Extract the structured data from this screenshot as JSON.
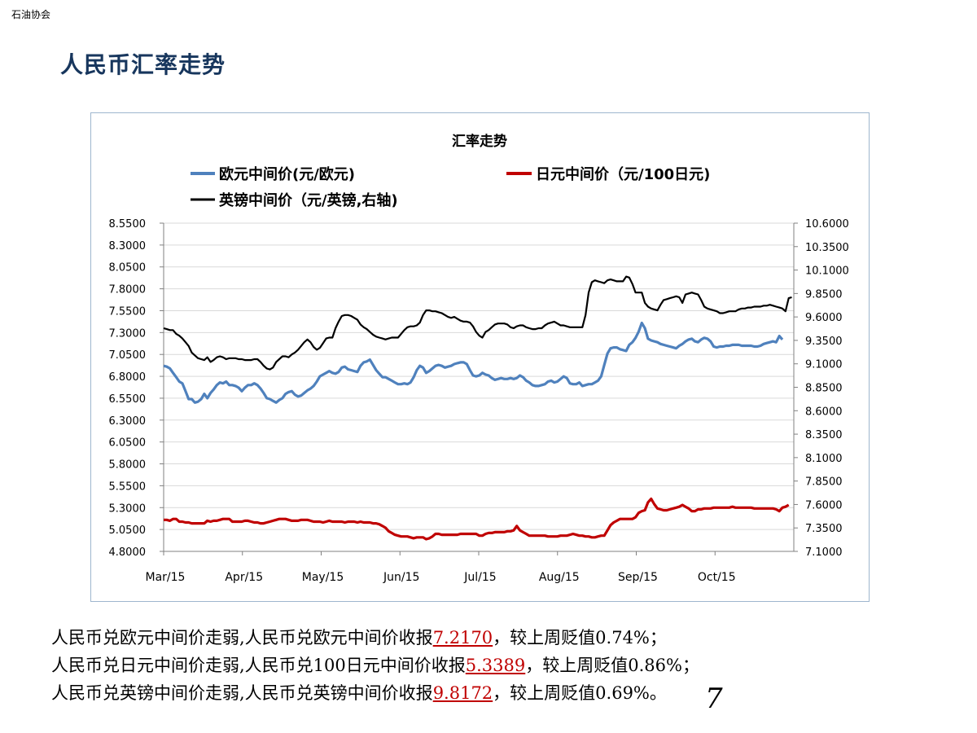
{
  "header": {
    "org": "石油协会",
    "title": "人民币汇率走势"
  },
  "chart_data": {
    "type": "line",
    "title": "汇率走势",
    "legend_placement": "top",
    "grid": true,
    "x_ticks": [
      "Mar/15",
      "Apr/15",
      "May/15",
      "Jun/15",
      "Jul/15",
      "Aug/15",
      "Sep/15",
      "Oct/15"
    ],
    "y_left": {
      "ticks": [
        "4.8000",
        "5.0500",
        "5.3000",
        "5.5500",
        "5.8000",
        "6.0500",
        "6.3000",
        "6.5500",
        "6.8000",
        "7.0500",
        "7.3000",
        "7.5500",
        "7.8000",
        "8.0500",
        "8.3000",
        "8.5500"
      ],
      "ylim": [
        4.8,
        8.55
      ]
    },
    "y_right": {
      "ticks": [
        "7.1000",
        "7.3500",
        "7.6000",
        "7.8500",
        "8.1000",
        "8.3500",
        "8.6000",
        "8.8500",
        "9.1000",
        "9.3500",
        "9.6000",
        "9.8500",
        "10.1000",
        "10.3500",
        "10.6000"
      ],
      "ylim": [
        7.1,
        10.6
      ]
    },
    "series": [
      {
        "name": "欧元中间价(元/欧元)",
        "axis": "left",
        "color": "#4f81bd",
        "values": [
          6.92,
          6.91,
          6.89,
          6.84,
          6.79,
          6.74,
          6.72,
          6.63,
          6.54,
          6.54,
          6.5,
          6.51,
          6.54,
          6.6,
          6.55,
          6.61,
          6.65,
          6.7,
          6.73,
          6.72,
          6.74,
          6.7,
          6.7,
          6.69,
          6.67,
          6.63,
          6.67,
          6.7,
          6.7,
          6.72,
          6.7,
          6.66,
          6.61,
          6.55,
          6.54,
          6.52,
          6.5,
          6.53,
          6.55,
          6.6,
          6.62,
          6.63,
          6.59,
          6.57,
          6.58,
          6.61,
          6.64,
          6.66,
          6.69,
          6.74,
          6.8,
          6.82,
          6.84,
          6.86,
          6.84,
          6.83,
          6.85,
          6.9,
          6.91,
          6.88,
          6.87,
          6.86,
          6.85,
          6.92,
          6.96,
          6.97,
          6.99,
          6.93,
          6.87,
          6.83,
          6.79,
          6.79,
          6.77,
          6.75,
          6.73,
          6.71,
          6.71,
          6.72,
          6.71,
          6.73,
          6.79,
          6.87,
          6.92,
          6.9,
          6.84,
          6.86,
          6.89,
          6.92,
          6.93,
          6.92,
          6.9,
          6.91,
          6.92,
          6.94,
          6.95,
          6.96,
          6.96,
          6.94,
          6.87,
          6.81,
          6.8,
          6.81,
          6.84,
          6.82,
          6.81,
          6.78,
          6.76,
          6.77,
          6.78,
          6.77,
          6.77,
          6.78,
          6.77,
          6.78,
          6.81,
          6.79,
          6.75,
          6.73,
          6.7,
          6.69,
          6.69,
          6.7,
          6.71,
          6.74,
          6.75,
          6.73,
          6.74,
          6.77,
          6.8,
          6.78,
          6.72,
          6.71,
          6.71,
          6.73,
          6.69,
          6.7,
          6.71,
          6.71,
          6.73,
          6.75,
          6.8,
          6.93,
          7.06,
          7.12,
          7.13,
          7.13,
          7.11,
          7.1,
          7.09,
          7.16,
          7.19,
          7.24,
          7.31,
          7.41,
          7.35,
          7.23,
          7.21,
          7.2,
          7.19,
          7.17,
          7.16,
          7.15,
          7.14,
          7.13,
          7.12,
          7.15,
          7.17,
          7.2,
          7.22,
          7.23,
          7.2,
          7.19,
          7.22,
          7.24,
          7.23,
          7.2,
          7.14,
          7.13,
          7.14,
          7.14,
          7.15,
          7.15,
          7.16,
          7.16,
          7.16,
          7.15,
          7.15,
          7.15,
          7.15,
          7.14,
          7.14,
          7.15,
          7.17,
          7.18,
          7.19,
          7.2,
          7.19,
          7.26,
          7.22
        ]
      },
      {
        "name": "日元中间价（元/100日元)",
        "axis": "left",
        "color": "#c00000",
        "values": [
          5.16,
          5.16,
          5.15,
          5.17,
          5.17,
          5.14,
          5.14,
          5.13,
          5.13,
          5.12,
          5.12,
          5.12,
          5.12,
          5.12,
          5.15,
          5.14,
          5.15,
          5.15,
          5.16,
          5.17,
          5.17,
          5.17,
          5.14,
          5.14,
          5.14,
          5.14,
          5.15,
          5.15,
          5.14,
          5.13,
          5.13,
          5.12,
          5.12,
          5.13,
          5.14,
          5.15,
          5.16,
          5.17,
          5.17,
          5.17,
          5.16,
          5.15,
          5.15,
          5.15,
          5.16,
          5.16,
          5.16,
          5.15,
          5.14,
          5.14,
          5.14,
          5.13,
          5.14,
          5.15,
          5.14,
          5.14,
          5.14,
          5.14,
          5.13,
          5.14,
          5.14,
          5.14,
          5.13,
          5.14,
          5.13,
          5.13,
          5.13,
          5.12,
          5.12,
          5.11,
          5.09,
          5.07,
          5.03,
          5.01,
          4.99,
          4.98,
          4.97,
          4.97,
          4.97,
          4.96,
          4.95,
          4.96,
          4.96,
          4.96,
          4.94,
          4.95,
          4.97,
          5,
          5,
          4.99,
          4.99,
          4.99,
          4.99,
          4.99,
          4.99,
          5,
          5,
          5,
          5,
          5,
          5,
          4.98,
          4.98,
          5,
          5.01,
          5.01,
          5.02,
          5.02,
          5.02,
          5.02,
          5.03,
          5.03,
          5.04,
          5.09,
          5.04,
          5.02,
          5,
          4.98,
          4.98,
          4.98,
          4.98,
          4.98,
          4.98,
          4.97,
          4.97,
          4.97,
          4.97,
          4.98,
          4.98,
          4.98,
          4.99,
          5,
          4.99,
          4.98,
          4.98,
          4.97,
          4.97,
          4.96,
          4.96,
          4.97,
          4.98,
          4.98,
          5.04,
          5.1,
          5.13,
          5.15,
          5.17,
          5.17,
          5.17,
          5.17,
          5.17,
          5.19,
          5.24,
          5.26,
          5.27,
          5.36,
          5.4,
          5.34,
          5.29,
          5.28,
          5.27,
          5.27,
          5.28,
          5.29,
          5.3,
          5.31,
          5.33,
          5.31,
          5.29,
          5.26,
          5.26,
          5.28,
          5.28,
          5.29,
          5.29,
          5.29,
          5.3,
          5.3,
          5.3,
          5.3,
          5.3,
          5.3,
          5.31,
          5.3,
          5.3,
          5.3,
          5.3,
          5.3,
          5.3,
          5.29,
          5.29,
          5.29,
          5.29,
          5.29,
          5.29,
          5.29,
          5.28,
          5.26,
          5.3,
          5.31,
          5.33
        ]
      },
      {
        "name": "英镑中间价（元/英镑,右轴)",
        "axis": "right",
        "color": "#000000",
        "values": [
          9.48,
          9.47,
          9.46,
          9.46,
          9.42,
          9.4,
          9.37,
          9.33,
          9.29,
          9.22,
          9.19,
          9.16,
          9.15,
          9.14,
          9.17,
          9.12,
          9.14,
          9.17,
          9.18,
          9.17,
          9.15,
          9.16,
          9.16,
          9.16,
          9.15,
          9.15,
          9.14,
          9.14,
          9.14,
          9.15,
          9.15,
          9.12,
          9.08,
          9.05,
          9.04,
          9.06,
          9.12,
          9.15,
          9.18,
          9.18,
          9.17,
          9.2,
          9.22,
          9.25,
          9.29,
          9.33,
          9.36,
          9.33,
          9.28,
          9.25,
          9.27,
          9.32,
          9.37,
          9.38,
          9.38,
          9.48,
          9.55,
          9.61,
          9.62,
          9.62,
          9.61,
          9.59,
          9.57,
          9.52,
          9.49,
          9.47,
          9.44,
          9.41,
          9.39,
          9.38,
          9.37,
          9.36,
          9.37,
          9.38,
          9.38,
          9.38,
          9.42,
          9.46,
          9.49,
          9.5,
          9.5,
          9.51,
          9.54,
          9.62,
          9.67,
          9.67,
          9.66,
          9.66,
          9.65,
          9.64,
          9.62,
          9.6,
          9.59,
          9.6,
          9.58,
          9.56,
          9.55,
          9.55,
          9.54,
          9.5,
          9.44,
          9.4,
          9.38,
          9.44,
          9.46,
          9.49,
          9.52,
          9.53,
          9.53,
          9.53,
          9.52,
          9.49,
          9.48,
          9.5,
          9.51,
          9.51,
          9.49,
          9.48,
          9.47,
          9.47,
          9.48,
          9.48,
          9.51,
          9.53,
          9.54,
          9.55,
          9.53,
          9.51,
          9.51,
          9.5,
          9.49,
          9.49,
          9.49,
          9.49,
          9.49,
          9.62,
          9.86,
          9.97,
          9.99,
          9.98,
          9.97,
          9.96,
          9.99,
          10,
          9.99,
          9.98,
          9.98,
          9.98,
          10.03,
          10.02,
          9.95,
          9.86,
          9.86,
          9.86,
          9.75,
          9.71,
          9.69,
          9.68,
          9.67,
          9.73,
          9.78,
          9.79,
          9.8,
          9.81,
          9.82,
          9.81,
          9.75,
          9.84,
          9.85,
          9.86,
          9.85,
          9.84,
          9.78,
          9.71,
          9.69,
          9.68,
          9.67,
          9.66,
          9.64,
          9.64,
          9.65,
          9.66,
          9.66,
          9.66,
          9.68,
          9.69,
          9.69,
          9.7,
          9.7,
          9.71,
          9.71,
          9.71,
          9.72,
          9.72,
          9.73,
          9.72,
          9.71,
          9.7,
          9.69,
          9.66,
          9.8,
          9.81
        ]
      }
    ]
  },
  "notes": [
    {
      "text": "人民币兑欧元中间价走弱,人民币兑欧元中间价收报",
      "value": "7.2170",
      "suffix": "，较上周贬值0.74%；"
    },
    {
      "text": "人民币兑日元中间价走弱,人民币兑100日元中间价收报",
      "value": "5.3389",
      "suffix": "，较上周贬值0.86%；"
    },
    {
      "text": "人民币兑英镑中间价走弱,人民币兑英镑中间价收报",
      "value": "9.8172",
      "suffix": "，较上周贬值0.69%。"
    }
  ],
  "page": {
    "number": "7"
  }
}
